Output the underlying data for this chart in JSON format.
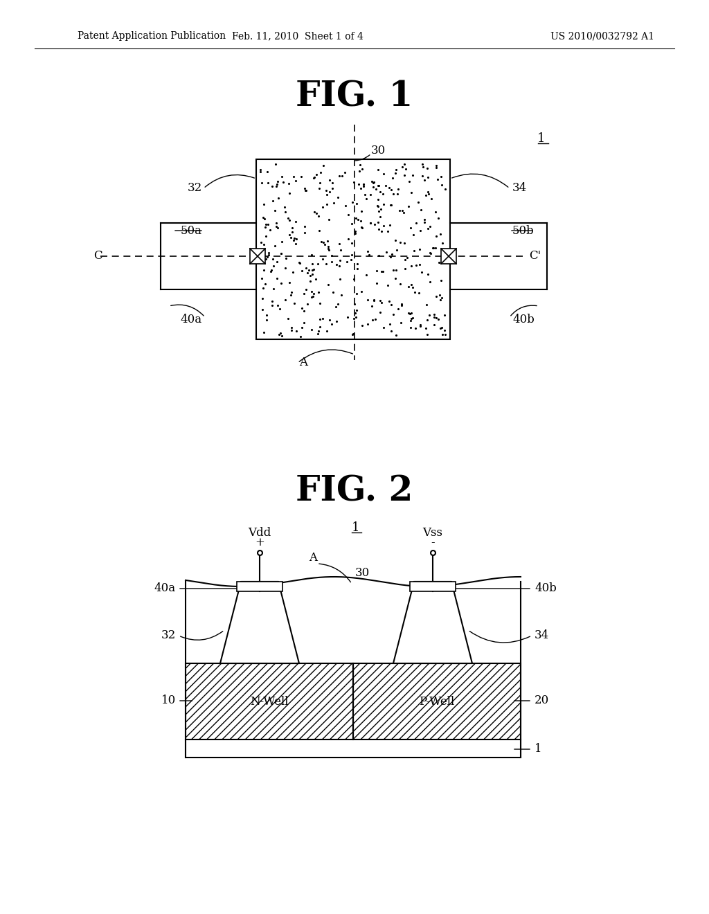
{
  "bg_color": "#ffffff",
  "header_left": "Patent Application Publication",
  "header_mid": "Feb. 11, 2010  Sheet 1 of 4",
  "header_right": "US 2010/0032792 A1",
  "fig1_title": "FIG. 1",
  "fig2_title": "FIG. 2",
  "fig1_label_1": "1",
  "fig1_label_30": "30",
  "fig1_label_32": "32",
  "fig1_label_34": "34",
  "fig1_label_50a": "50a",
  "fig1_label_50b": "50b",
  "fig1_label_C": "C",
  "fig1_label_Cprime": "C'",
  "fig1_label_40a": "40a",
  "fig1_label_40b": "40b",
  "fig1_label_A": "A",
  "fig2_label_1": "1",
  "fig2_label_Vdd": "Vdd",
  "fig2_label_plus": "+",
  "fig2_label_A": "A",
  "fig2_label_30": "30",
  "fig2_label_Vss": "Vss",
  "fig2_label_minus": "-",
  "fig2_label_40a": "40a",
  "fig2_label_40b": "40b",
  "fig2_label_32": "32",
  "fig2_label_34": "34",
  "fig2_label_10": "10",
  "fig2_label_NWell": "N-Well",
  "fig2_label_PWell": "P-Well",
  "fig2_label_20": "20",
  "fig2_label_1b": "1"
}
